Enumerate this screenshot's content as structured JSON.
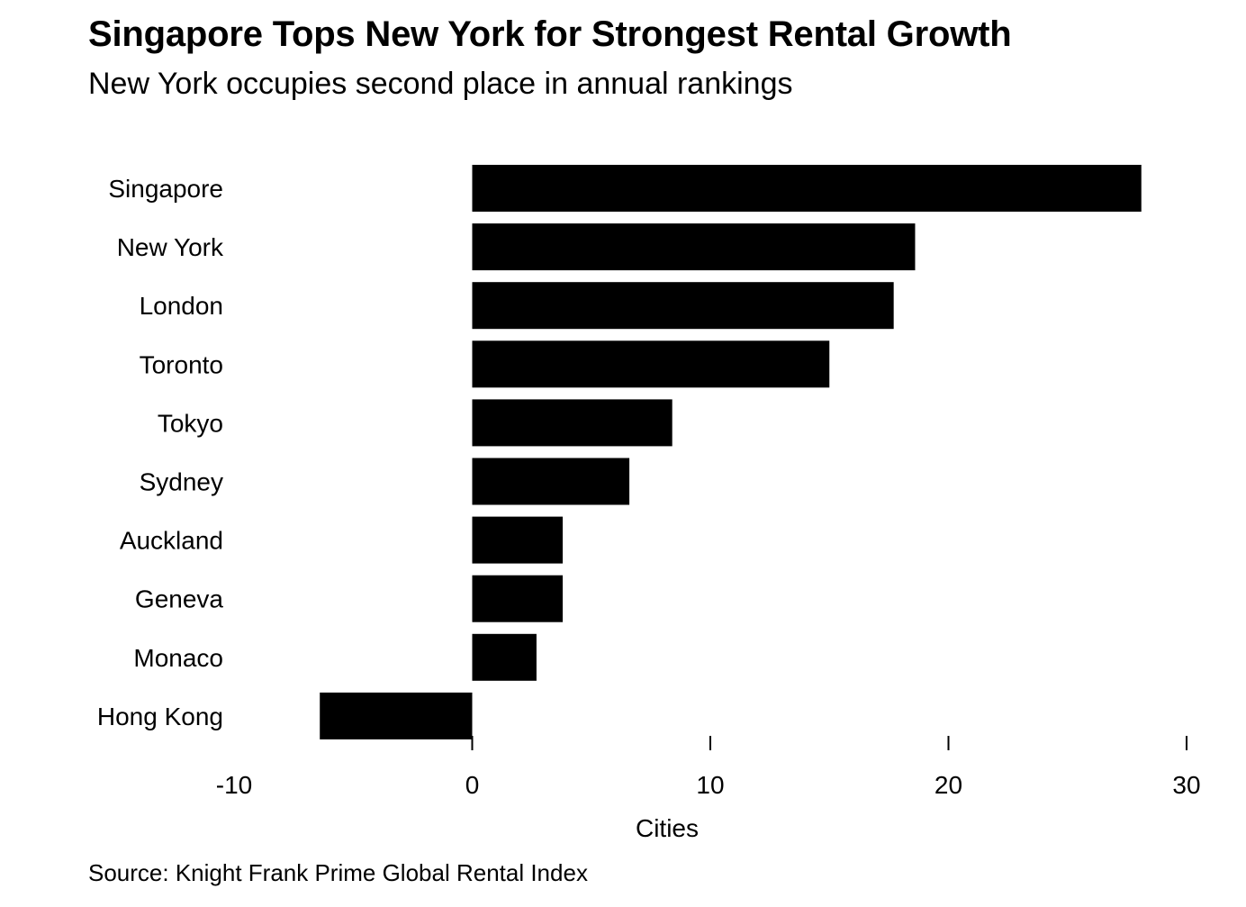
{
  "chart_data": {
    "type": "bar",
    "orientation": "horizontal",
    "title": "Singapore Tops New York for Strongest Rental Growth",
    "subtitle": "New York occupies second place in annual rankings",
    "categories": [
      "Singapore",
      "New York",
      "London",
      "Toronto",
      "Tokyo",
      "Sydney",
      "Auckland",
      "Geneva",
      "Monaco",
      "Hong Kong"
    ],
    "values": [
      28.1,
      18.6,
      17.7,
      15.0,
      8.4,
      6.6,
      3.8,
      3.8,
      2.7,
      -6.4
    ],
    "xlabel": "Cities",
    "ylabel": "",
    "xlim": [
      -10,
      30
    ],
    "xticks": [
      -10,
      0,
      10,
      20,
      30
    ],
    "bar_color": "#000000",
    "grid": false,
    "legend": "none",
    "source": "Source: Knight Frank Prime Global Rental Index"
  }
}
